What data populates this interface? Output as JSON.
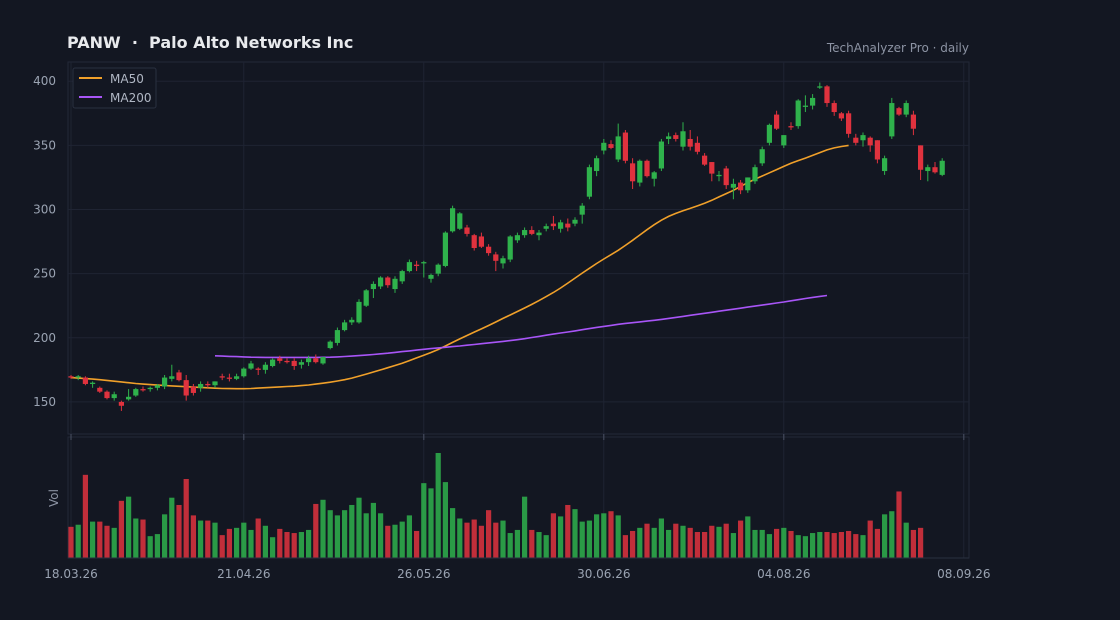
{
  "header": {
    "title": "PANW  ·  Palo Alto Networks Inc",
    "source": "TechAnalyzer Pro · daily"
  },
  "colors": {
    "background": "#131722",
    "up": "#2fb24c",
    "down": "#e0323e",
    "ma50": "#f0a02a",
    "ma200": "#a855f7",
    "grid": "#1f2433"
  },
  "chart_data": {
    "type": "candlestick",
    "title": "PANW  ·  Palo Alto Networks Inc",
    "ylim": [
      125,
      415
    ],
    "y_ticks": [
      150,
      200,
      250,
      300,
      350,
      400
    ],
    "x_tick_labels": [
      "18.03.26",
      "21.04.26",
      "26.05.26",
      "30.06.26",
      "04.08.26",
      "08.09.26"
    ],
    "x_tick_index": [
      0,
      24,
      49,
      74,
      99,
      124
    ],
    "volume_label": "Vol",
    "grid": true,
    "legend_position": "top-left",
    "ma_series": [
      {
        "name": "MA50",
        "start_index": 0,
        "values": [
          169,
          168.6,
          168.2,
          167.8,
          167.3,
          166.8,
          166.2,
          165.6,
          165,
          164.4,
          163.9,
          163.5,
          163.1,
          162.8,
          162.5,
          162.2,
          161.9,
          161.6,
          161.3,
          161,
          160.7,
          160.5,
          160.4,
          160.3,
          160.3,
          160.5,
          160.8,
          161.1,
          161.4,
          161.7,
          162,
          162.3,
          162.7,
          163.2,
          163.9,
          164.6,
          165.4,
          166.3,
          167.3,
          168.6,
          170.1,
          171.7,
          173.3,
          175,
          176.7,
          178.4,
          180.2,
          182.2,
          184.3,
          186.4,
          188.5,
          190.9,
          193.6,
          196.4,
          199.1,
          201.8,
          204.4,
          206.9,
          209.6,
          212.3,
          215.1,
          217.8,
          220.5,
          223.2,
          226,
          229,
          232.1,
          235.3,
          238.8,
          242.6,
          246.5,
          250.4,
          254.2,
          257.9,
          261.4,
          264.8,
          268.2,
          272,
          276,
          280.1,
          284.3,
          288.2,
          291.7,
          294.6,
          297,
          299.1,
          300.9,
          302.8,
          304.9,
          307.2,
          309.8,
          312.4,
          315,
          318,
          321,
          323.6,
          326.1,
          328.6,
          331.1,
          333.6,
          336,
          338.1,
          340.1,
          342.2,
          344.4,
          346.5,
          348,
          349.1,
          350
        ]
      },
      {
        "name": "MA200",
        "start_index": 20,
        "values": [
          186,
          185.7,
          185.5,
          185.3,
          185.1,
          184.9,
          184.8,
          184.7,
          184.7,
          184.7,
          184.7,
          184.7,
          184.7,
          184.7,
          184.7,
          184.8,
          184.9,
          185.1,
          185.4,
          185.7,
          186.1,
          186.5,
          187,
          187.5,
          188,
          188.6,
          189.2,
          189.8,
          190.4,
          191,
          191.6,
          192.1,
          192.6,
          193.1,
          193.6,
          194.2,
          194.8,
          195.4,
          196,
          196.6,
          197.2,
          197.8,
          198.5,
          199.3,
          200.2,
          201.1,
          202,
          202.9,
          203.7,
          204.5,
          205.4,
          206.3,
          207.2,
          208.1,
          208.9,
          209.7,
          210.5,
          211.2,
          211.8,
          212.4,
          213,
          213.6,
          214.3,
          215.1,
          215.9,
          216.7,
          217.5,
          218.3,
          219.1,
          219.9,
          220.7,
          221.5,
          222.3,
          223.1,
          223.9,
          224.7,
          225.5,
          226.3,
          227.1,
          227.9,
          228.8,
          229.7,
          230.6,
          231.5,
          232.3,
          233
        ]
      }
    ],
    "candles": [
      [
        170,
        171,
        168,
        169
      ],
      [
        169,
        171,
        167,
        170
      ],
      [
        169,
        170,
        163,
        164
      ],
      [
        164,
        166,
        161,
        165
      ],
      [
        161,
        162,
        157,
        158
      ],
      [
        158,
        159,
        152,
        153
      ],
      [
        153,
        158,
        151,
        156
      ],
      [
        150,
        151,
        143,
        147
      ],
      [
        152,
        160,
        151,
        154
      ],
      [
        155,
        161,
        154,
        160
      ],
      [
        160,
        162,
        158,
        159
      ],
      [
        160,
        162,
        158,
        161
      ],
      [
        161,
        164,
        159,
        163
      ],
      [
        162,
        171,
        160,
        169
      ],
      [
        168,
        179,
        166,
        170
      ],
      [
        173,
        175,
        166,
        167
      ],
      [
        167,
        171,
        151,
        155
      ],
      [
        162,
        164,
        155,
        157
      ],
      [
        161,
        166,
        158,
        164
      ],
      [
        164,
        166,
        161,
        163
      ],
      [
        163,
        166,
        161,
        166
      ],
      [
        170,
        172,
        167,
        169
      ],
      [
        169,
        172,
        166,
        168
      ],
      [
        168,
        172,
        167,
        170
      ],
      [
        170,
        177,
        169,
        176
      ],
      [
        176,
        182,
        175,
        180
      ],
      [
        176,
        177,
        171,
        175
      ],
      [
        175,
        181,
        172,
        179
      ],
      [
        178,
        184,
        177,
        183
      ],
      [
        184,
        186,
        180,
        182
      ],
      [
        182,
        184,
        180,
        181
      ],
      [
        182,
        184,
        175,
        178
      ],
      [
        179,
        183,
        176,
        181
      ],
      [
        181,
        186,
        178,
        184
      ],
      [
        184,
        187,
        180,
        181
      ],
      [
        180,
        185,
        179,
        185
      ],
      [
        192,
        198,
        191,
        197
      ],
      [
        196,
        208,
        194,
        206
      ],
      [
        206,
        214,
        205,
        212
      ],
      [
        212,
        216,
        210,
        214
      ],
      [
        212,
        230,
        211,
        228
      ],
      [
        225,
        238,
        224,
        237
      ],
      [
        238,
        244,
        231,
        242
      ],
      [
        240,
        248,
        238,
        247
      ],
      [
        247,
        248,
        239,
        241
      ],
      [
        238,
        248,
        235,
        246
      ],
      [
        244,
        253,
        242,
        252
      ],
      [
        252,
        261,
        251,
        259
      ],
      [
        257,
        260,
        252,
        256
      ],
      [
        258,
        260,
        247,
        259
      ],
      [
        246,
        250,
        243,
        249
      ],
      [
        250,
        258,
        248,
        257
      ],
      [
        256,
        283,
        255,
        282
      ],
      [
        283,
        303,
        282,
        301
      ],
      [
        285,
        298,
        284,
        297
      ],
      [
        286,
        288,
        279,
        281
      ],
      [
        280,
        281,
        268,
        270
      ],
      [
        279,
        282,
        270,
        271
      ],
      [
        271,
        273,
        264,
        266
      ],
      [
        265,
        267,
        252,
        260
      ],
      [
        258,
        264,
        254,
        262
      ],
      [
        261,
        280,
        259,
        279
      ],
      [
        276,
        282,
        274,
        280
      ],
      [
        280,
        286,
        278,
        284
      ],
      [
        284,
        287,
        280,
        281
      ],
      [
        280,
        284,
        276,
        282
      ],
      [
        285,
        289,
        283,
        287
      ],
      [
        289,
        295,
        284,
        287
      ],
      [
        285,
        292,
        282,
        290
      ],
      [
        289,
        293,
        283,
        286
      ],
      [
        289,
        294,
        287,
        292
      ],
      [
        296,
        305,
        289,
        303
      ],
      [
        310,
        335,
        308,
        333
      ],
      [
        330,
        342,
        326,
        340
      ],
      [
        346,
        355,
        343,
        352
      ],
      [
        351,
        354,
        347,
        348
      ],
      [
        339,
        367,
        337,
        357
      ],
      [
        360,
        362,
        336,
        338
      ],
      [
        336,
        340,
        316,
        322
      ],
      [
        321,
        339,
        318,
        338
      ],
      [
        338,
        339,
        325,
        326
      ],
      [
        324,
        330,
        318,
        329
      ],
      [
        332,
        355,
        330,
        353
      ],
      [
        355,
        360,
        351,
        357
      ],
      [
        358,
        360,
        353,
        355
      ],
      [
        349,
        368,
        346,
        361
      ],
      [
        355,
        362,
        346,
        349
      ],
      [
        352,
        357,
        343,
        345
      ],
      [
        342,
        344,
        334,
        335
      ],
      [
        337,
        337,
        322,
        328
      ],
      [
        326,
        330,
        322,
        327
      ],
      [
        332,
        334,
        316,
        319
      ],
      [
        317,
        324,
        308,
        320
      ],
      [
        321,
        323,
        312,
        315
      ],
      [
        315,
        325,
        313,
        325
      ],
      [
        322,
        335,
        320,
        333
      ],
      [
        336,
        349,
        334,
        347
      ],
      [
        352,
        367,
        350,
        366
      ],
      [
        374,
        377,
        362,
        363
      ],
      [
        350,
        358,
        348,
        358
      ],
      [
        365,
        368,
        362,
        364
      ],
      [
        365,
        386,
        363,
        385
      ],
      [
        380,
        389,
        376,
        381
      ],
      [
        381,
        390,
        378,
        387
      ],
      [
        395,
        399,
        394,
        396
      ],
      [
        396,
        397,
        380,
        383
      ],
      [
        383,
        385,
        373,
        376
      ],
      [
        375,
        376,
        369,
        371
      ],
      [
        375,
        377,
        356,
        359
      ],
      [
        356,
        359,
        350,
        352
      ],
      [
        354,
        360,
        349,
        358
      ],
      [
        356,
        357,
        345,
        350
      ],
      [
        354,
        354,
        336,
        339
      ],
      [
        330,
        342,
        327,
        340
      ],
      [
        357,
        387,
        355,
        383
      ],
      [
        379,
        380,
        373,
        374
      ],
      [
        374,
        385,
        372,
        383
      ],
      [
        374,
        377,
        358,
        363
      ],
      [
        350,
        350,
        323,
        331
      ],
      [
        330,
        335,
        322,
        333
      ],
      [
        333,
        337,
        328,
        329
      ],
      [
        327,
        340,
        326,
        338
      ]
    ],
    "volume": [
      30,
      32,
      80,
      35,
      35,
      31,
      29,
      55,
      59,
      38,
      37,
      21,
      23,
      42,
      58,
      51,
      76,
      41,
      36,
      36,
      34,
      22,
      28,
      29,
      34,
      27,
      38,
      31,
      20,
      28,
      25,
      24,
      25,
      27,
      52,
      56,
      46,
      41,
      46,
      51,
      58,
      43,
      53,
      43,
      31,
      32,
      35,
      41,
      26,
      72,
      67,
      101,
      73,
      48,
      38,
      34,
      37,
      31,
      46,
      34,
      36,
      24,
      27,
      59,
      27,
      25,
      22,
      43,
      40,
      51,
      47,
      35,
      36,
      42,
      43,
      45,
      41,
      22,
      26,
      29,
      33,
      29,
      38,
      27,
      33,
      31,
      29,
      25,
      25,
      31,
      30,
      33,
      24,
      36,
      40,
      27,
      27,
      23,
      28,
      29,
      26,
      22,
      21,
      24,
      25,
      25,
      24,
      25,
      26,
      23,
      22,
      36,
      28,
      42,
      45,
      64,
      34,
      27,
      29
    ]
  }
}
